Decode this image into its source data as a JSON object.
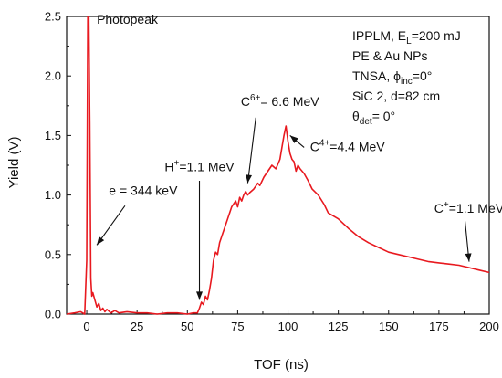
{
  "chart_data": {
    "type": "line",
    "xlabel": "TOF (ns)",
    "ylabel": "Yield (V)",
    "xlim": [
      -10,
      200
    ],
    "ylim": [
      0,
      2.5
    ],
    "x_ticks": [
      0,
      25,
      50,
      75,
      100,
      125,
      150,
      175,
      200
    ],
    "y_ticks": [
      0.0,
      0.5,
      1.0,
      1.5,
      2.0,
      2.5
    ],
    "line_color": "#e8191f",
    "series": [
      {
        "x": [
          -10,
          -6,
          -3,
          -1,
          0,
          0.5,
          1,
          1.5,
          2,
          2.5,
          3,
          4,
          5,
          6,
          7,
          8,
          9,
          10,
          12,
          14,
          16,
          20,
          25,
          30,
          35,
          40,
          45,
          50,
          53,
          55,
          56,
          57,
          58,
          59,
          60,
          61,
          62,
          63,
          64,
          65,
          66,
          67,
          68,
          70,
          72,
          74,
          75,
          76,
          77,
          78,
          79,
          80,
          81,
          83,
          85,
          86,
          88,
          90,
          92,
          94,
          96,
          97,
          98,
          99,
          100,
          101,
          102,
          103,
          104,
          105,
          106,
          108,
          110,
          112,
          115,
          118,
          120,
          125,
          130,
          135,
          140,
          145,
          150,
          155,
          160,
          165,
          170,
          175,
          180,
          185,
          190,
          195,
          200
        ],
        "y": [
          0.0,
          0.01,
          0.02,
          0.0,
          0.45,
          2.5,
          2.5,
          1.6,
          0.3,
          0.15,
          0.18,
          0.12,
          0.06,
          0.09,
          0.03,
          0.05,
          0.02,
          0.04,
          0.01,
          0.03,
          0.01,
          0.02,
          0.01,
          0.01,
          0.0,
          0.01,
          0.01,
          0.0,
          0.01,
          0.01,
          0.05,
          0.1,
          0.08,
          0.15,
          0.12,
          0.2,
          0.3,
          0.45,
          0.52,
          0.5,
          0.6,
          0.65,
          0.7,
          0.8,
          0.9,
          0.95,
          0.9,
          0.98,
          0.95,
          1.0,
          1.03,
          1.0,
          1.02,
          1.05,
          1.1,
          1.08,
          1.15,
          1.2,
          1.25,
          1.22,
          1.3,
          1.4,
          1.5,
          1.58,
          1.45,
          1.35,
          1.3,
          1.28,
          1.2,
          1.25,
          1.22,
          1.18,
          1.12,
          1.05,
          1.0,
          0.92,
          0.85,
          0.8,
          0.72,
          0.65,
          0.6,
          0.56,
          0.52,
          0.5,
          0.48,
          0.46,
          0.44,
          0.43,
          0.42,
          0.41,
          0.39,
          0.37,
          0.35
        ]
      }
    ],
    "annotations": [
      {
        "text": "Photopeak",
        "x": 5,
        "y": 2.44,
        "anchor": "start"
      },
      {
        "text": "e = 344 keV",
        "x": 11,
        "y": 1.0,
        "anchor": "start"
      },
      {
        "text": "H⁺=1.1 MeV",
        "x": 56,
        "y": 1.2,
        "anchor": "middle"
      },
      {
        "text": "C⁶⁺= 6.6 MeV",
        "x": 96,
        "y": 1.75,
        "anchor": "middle"
      },
      {
        "text": "C⁴⁺=4.4 MeV",
        "x": 111,
        "y": 1.37,
        "anchor": "start"
      },
      {
        "text": "C⁺=1.1 MeV",
        "x": 190,
        "y": 0.85,
        "anchor": "middle"
      }
    ],
    "arrows": [
      {
        "from": [
          19,
          0.91
        ],
        "to": [
          5,
          0.58
        ]
      },
      {
        "from": [
          56,
          1.12
        ],
        "to": [
          56,
          0.12
        ]
      },
      {
        "from": [
          84,
          1.65
        ],
        "to": [
          80,
          1.1
        ]
      },
      {
        "from": [
          108,
          1.4
        ],
        "to": [
          101,
          1.5
        ]
      },
      {
        "from": [
          188,
          0.78
        ],
        "to": [
          190,
          0.44
        ]
      }
    ]
  },
  "legend": {
    "line1": "IPPLM, E",
    "line1_sub": "L",
    "line1_rest": "=200 mJ",
    "line2": "PE & Au NPs",
    "line3": "TNSA, ϕ",
    "line3_sub": "inc",
    "line3_rest": "=0°",
    "line4": "SiC 2, d=82 cm",
    "line5": "θ",
    "line5_sub": "det",
    "line5_rest": "= 0°"
  }
}
